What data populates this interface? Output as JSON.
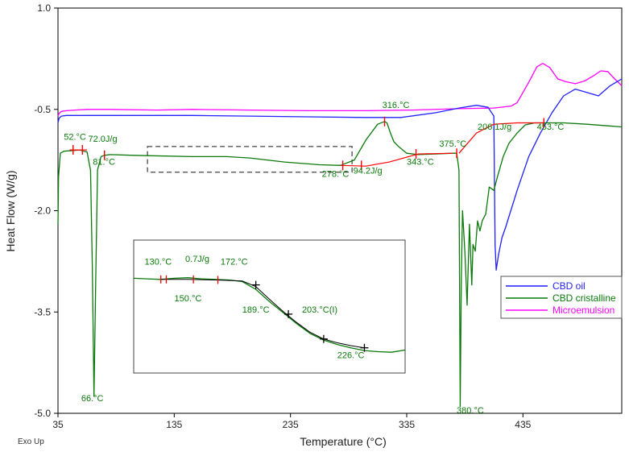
{
  "chart_data": {
    "type": "line",
    "xlabel": "Temperature (°C)",
    "ylabel": "Heat Flow (W/g)",
    "exo_label": "Exo Up",
    "xlim": [
      35,
      520
    ],
    "ylim": [
      -5.0,
      1.0
    ],
    "x_ticks": [
      35,
      135,
      235,
      335,
      435
    ],
    "x_tick_labels": [
      "35",
      "135",
      "235",
      "335",
      "435"
    ],
    "y_ticks": [
      1.0,
      -0.5,
      -2.0,
      -3.5,
      -5.0
    ],
    "y_tick_labels": [
      "1.0",
      "-0.5",
      "-2.0",
      "-3.5",
      "-5.0"
    ],
    "colors": {
      "cbd_oil": "#1f1fff",
      "cbd_cristalline": "#0a7a0a",
      "microemulsion": "#ff00ff",
      "analysis": "#ff0000",
      "annotation": "#0a7a0a"
    },
    "legend": {
      "position": "right",
      "entries": [
        {
          "label": "CBD oil",
          "color": "#1f1fff"
        },
        {
          "label": "CBD cristalline",
          "color": "#0a7a0a"
        },
        {
          "label": "Microemulsion",
          "color": "#ff00ff"
        }
      ]
    },
    "series": [
      {
        "name": "Microemulsion",
        "color": "#ff00ff",
        "x": [
          35,
          36,
          38,
          42,
          50,
          60,
          80,
          120,
          150,
          200,
          250,
          300,
          340,
          380,
          410,
          425,
          430,
          440,
          447,
          452,
          458,
          465,
          472,
          480,
          488,
          495,
          502,
          508,
          514,
          520
        ],
        "y": [
          -0.6,
          -0.56,
          -0.53,
          -0.52,
          -0.51,
          -0.5,
          -0.5,
          -0.51,
          -0.5,
          -0.51,
          -0.52,
          -0.52,
          -0.51,
          -0.49,
          -0.48,
          -0.45,
          -0.4,
          -0.1,
          0.13,
          0.18,
          0.12,
          -0.05,
          -0.09,
          -0.12,
          -0.08,
          -0.01,
          0.07,
          0.06,
          -0.05,
          -0.15
        ]
      },
      {
        "name": "CBD oil",
        "color": "#1f1fff",
        "x": [
          35,
          36,
          38,
          42,
          50,
          80,
          150,
          200,
          250,
          300,
          330,
          360,
          380,
          395,
          405,
          410,
          411,
          412,
          414,
          417,
          420,
          430,
          440,
          450,
          460,
          470,
          480,
          490,
          500,
          510,
          520
        ],
        "y": [
          -0.7,
          -0.63,
          -0.6,
          -0.59,
          -0.59,
          -0.59,
          -0.59,
          -0.6,
          -0.61,
          -0.62,
          -0.62,
          -0.55,
          -0.48,
          -0.44,
          -0.47,
          -0.6,
          -2.5,
          -2.88,
          -2.65,
          -2.4,
          -2.25,
          -1.7,
          -1.2,
          -0.85,
          -0.55,
          -0.3,
          -0.2,
          -0.25,
          -0.3,
          -0.15,
          -0.05
        ]
      },
      {
        "name": "CBD cristalline",
        "color": "#0a7a0a",
        "x": [
          35,
          35.5,
          37,
          40,
          48,
          54,
          57,
          60,
          63,
          64.5,
          66,
          67.5,
          69,
          72,
          75,
          80,
          100,
          150,
          180,
          200,
          230,
          260,
          278,
          290,
          300,
          310,
          316,
          318,
          321,
          324,
          328,
          335,
          345,
          360,
          375,
          378,
          380,
          381,
          382,
          383,
          385,
          387,
          389,
          391,
          392,
          394,
          396,
          398,
          400,
          403,
          406,
          410,
          413,
          418,
          423,
          430,
          437,
          445,
          453,
          470,
          490,
          520
        ],
        "y": [
          -2.2,
          -1.5,
          -1.15,
          -1.12,
          -1.11,
          -1.1,
          -1.12,
          -1.13,
          -1.4,
          -2.8,
          -4.75,
          -3.0,
          -1.4,
          -1.2,
          -1.18,
          -1.17,
          -1.18,
          -1.2,
          -1.2,
          -1.22,
          -1.28,
          -1.32,
          -1.33,
          -1.25,
          -0.95,
          -0.72,
          -0.68,
          -0.7,
          -0.85,
          -0.98,
          -1.05,
          -1.15,
          -1.17,
          -1.16,
          -1.15,
          -1.15,
          -1.4,
          -4.9,
          -3.0,
          -2.0,
          -2.6,
          -3.4,
          -2.2,
          -3.1,
          -2.5,
          -2.6,
          -2.15,
          -2.3,
          -2.15,
          -2.05,
          -1.65,
          -1.7,
          -1.5,
          -1.2,
          -1.0,
          -0.85,
          -0.73,
          -0.7,
          -0.7,
          -0.7,
          -0.72,
          -0.76
        ]
      }
    ],
    "analysis_lines": [
      {
        "name": "baseline-1",
        "x": [
          45,
          60
        ],
        "y": [
          -1.1,
          -1.1
        ]
      },
      {
        "name": "baseline-2",
        "x": [
          278,
          300,
          320,
          345,
          375
        ],
        "y": [
          -1.33,
          -1.34,
          -1.28,
          -1.16,
          -1.15
        ]
      },
      {
        "name": "baseline-3",
        "x": [
          380,
          395,
          410,
          430,
          453
        ],
        "y": [
          -1.15,
          -0.85,
          -0.72,
          -0.7,
          -0.7
        ]
      }
    ],
    "analysis_marks": [
      {
        "name": "mark-52",
        "x": 48,
        "y": -1.1
      },
      {
        "name": "mark-72",
        "x": 56,
        "y": -1.1
      },
      {
        "name": "mark-81",
        "x": 75,
        "y": -1.18
      },
      {
        "name": "mark-278",
        "x": 280,
        "y": -1.33
      },
      {
        "name": "mark-94",
        "x": 296,
        "y": -1.33
      },
      {
        "name": "mark-316",
        "x": 316,
        "y": -0.68
      },
      {
        "name": "mark-343",
        "x": 343,
        "y": -1.16
      },
      {
        "name": "mark-375",
        "x": 378,
        "y": -1.15
      },
      {
        "name": "mark-453",
        "x": 453,
        "y": -0.7
      }
    ],
    "annotations": [
      {
        "text": "52.°C",
        "x": 40,
        "y": -0.95
      },
      {
        "text": "72.0J/g",
        "x": 61,
        "y": -0.98
      },
      {
        "text": "81.°C",
        "x": 65,
        "y": -1.32
      },
      {
        "text": "66.°C",
        "x": 55,
        "y": -4.82
      },
      {
        "text": "278.°C",
        "x": 262,
        "y": -1.5
      },
      {
        "text": "94.2J/g",
        "x": 289,
        "y": -1.45
      },
      {
        "text": "316.°C",
        "x": 314,
        "y": -0.48
      },
      {
        "text": "343.°C",
        "x": 335,
        "y": -1.32
      },
      {
        "text": "375.°C",
        "x": 363,
        "y": -1.05
      },
      {
        "text": "206.1J/g",
        "x": 396,
        "y": -0.8
      },
      {
        "text": "453.°C",
        "x": 447,
        "y": -0.8
      },
      {
        "text": "380.°C",
        "x": 378,
        "y": -5.0
      }
    ],
    "zoom_box": {
      "x": [
        112,
        288
      ],
      "y": [
        -1.05,
        -1.43
      ]
    },
    "inset": {
      "x_domain": [
        0,
        100
      ],
      "y_domain": [
        -1.6,
        0.4
      ],
      "curve": {
        "x": [
          0,
          5,
          10,
          15,
          20,
          25,
          30,
          35,
          40,
          45,
          50,
          55,
          60,
          65,
          70,
          75,
          80,
          85,
          90,
          95,
          100
        ],
        "y": [
          0.0,
          -0.01,
          -0.02,
          0.0,
          0.01,
          -0.01,
          -0.02,
          -0.03,
          -0.06,
          -0.2,
          -0.42,
          -0.62,
          -0.82,
          -1.0,
          -1.12,
          -1.2,
          -1.26,
          -1.31,
          -1.33,
          -1.34,
          -1.3
        ]
      },
      "fit_line": {
        "x": [
          10,
          20,
          30,
          40,
          45,
          50,
          55,
          60,
          65,
          70,
          75,
          80,
          85
        ],
        "y": [
          -0.02,
          -0.02,
          -0.03,
          -0.05,
          -0.15,
          -0.38,
          -0.6,
          -0.8,
          -0.98,
          -1.1,
          -1.17,
          -1.22,
          -1.26
        ]
      },
      "marks": [
        {
          "x": 10,
          "y": -0.02,
          "color": "#ff0000"
        },
        {
          "x": 12,
          "y": -0.02,
          "color": "#ff0000"
        },
        {
          "x": 22,
          "y": -0.02,
          "color": "#ff0000"
        },
        {
          "x": 31,
          "y": -0.03,
          "color": "#ff0000"
        },
        {
          "x": 45,
          "y": -0.12,
          "color": "#000000"
        },
        {
          "x": 57,
          "y": -0.65,
          "color": "#000000"
        },
        {
          "x": 70,
          "y": -1.1,
          "color": "#000000"
        },
        {
          "x": 85,
          "y": -1.26,
          "color": "#000000"
        }
      ],
      "annotations": [
        {
          "text": "130.°C",
          "x": 4,
          "y": 0.25
        },
        {
          "text": "0.7J/g",
          "x": 19,
          "y": 0.3
        },
        {
          "text": "172.°C",
          "x": 32,
          "y": 0.25
        },
        {
          "text": "150.°C",
          "x": 15,
          "y": -0.42
        },
        {
          "text": "189.°C",
          "x": 40,
          "y": -0.62
        },
        {
          "text": "203.°C(I)",
          "x": 62,
          "y": -0.62
        },
        {
          "text": "226.°C",
          "x": 75,
          "y": -1.45
        }
      ]
    }
  }
}
